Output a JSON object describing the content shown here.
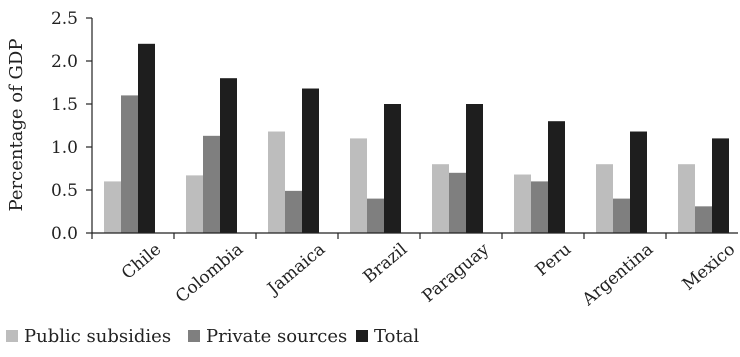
{
  "chart_data": {
    "type": "bar",
    "title": "",
    "xlabel": "",
    "ylabel": "Percentage of GDP",
    "ylim": [
      0,
      2.5
    ],
    "yticks": [
      "0.0",
      "0.5",
      "1.0",
      "1.5",
      "2.0",
      "2.5"
    ],
    "grid": false,
    "legend_position": "bottom-left",
    "categories": [
      "Chile",
      "Colombia",
      "Jamaica",
      "Brazil",
      "Paraguay",
      "Peru",
      "Argentina",
      "Mexico"
    ],
    "series": [
      {
        "name": "Public subsidies",
        "color": "#bdbdbd",
        "values": [
          0.6,
          0.67,
          1.18,
          1.1,
          0.8,
          0.68,
          0.8,
          0.8
        ]
      },
      {
        "name": "Private sources",
        "color": "#7f7f7f",
        "values": [
          1.6,
          1.13,
          0.49,
          0.4,
          0.7,
          0.6,
          0.4,
          0.31
        ]
      },
      {
        "name": "Total",
        "color": "#1e1e1e",
        "values": [
          2.2,
          1.8,
          1.68,
          1.5,
          1.5,
          1.3,
          1.18,
          1.1
        ]
      }
    ]
  }
}
